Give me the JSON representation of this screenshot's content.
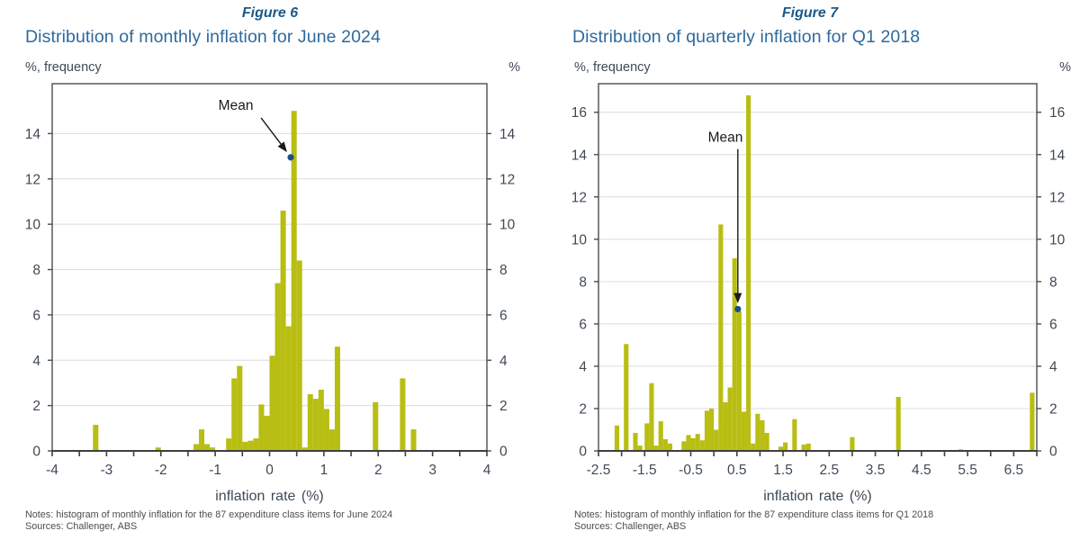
{
  "page": {
    "background": "#ffffff"
  },
  "colors": {
    "caption_blue": "#1b5a8a",
    "title_blue": "#2e6a9e",
    "axis_text": "#3f4a56",
    "bar": "#b8be12",
    "mean_dot": "#1d4e89",
    "grid": "#dcdcdc",
    "frame": "#4d4d4d",
    "axis_line": "#3f3f3f",
    "notes_gray": "#4d4d4d"
  },
  "chart_data": [
    {
      "type": "bar",
      "figure_label": "Figure 6",
      "title": "Distribution of monthly inflation for June 2024",
      "ylabel_left": "%, frequency",
      "ylabel_right": "%",
      "xlabel": "inflation rate (%)",
      "notes": "Notes: histogram of monthly inflation for the 87 expenditure class items for June 2024",
      "sources": "Sources: Challenger, ABS",
      "grid": true,
      "legend": "none",
      "xlim": [
        -4,
        4
      ],
      "ylim": [
        0,
        16.2
      ],
      "x_major_ticks": [
        -4,
        -3,
        -2,
        -1,
        0,
        1,
        2,
        3,
        4
      ],
      "x_minor_step": 0.5,
      "y_ticks": [
        0,
        2,
        4,
        6,
        8,
        10,
        12,
        14
      ],
      "bin_width": 0.1,
      "bars": [
        [
          -3.2,
          1.15
        ],
        [
          -2.05,
          0.15
        ],
        [
          -1.35,
          0.3
        ],
        [
          -1.25,
          0.95
        ],
        [
          -1.15,
          0.3
        ],
        [
          -1.05,
          0.15
        ],
        [
          -0.75,
          0.55
        ],
        [
          -0.65,
          3.2
        ],
        [
          -0.55,
          3.75
        ],
        [
          -0.45,
          0.4
        ],
        [
          -0.35,
          0.45
        ],
        [
          -0.25,
          0.55
        ],
        [
          -0.15,
          2.05
        ],
        [
          -0.05,
          1.55
        ],
        [
          0.05,
          4.2
        ],
        [
          0.15,
          7.4
        ],
        [
          0.25,
          10.6
        ],
        [
          0.35,
          5.5
        ],
        [
          0.45,
          15.0
        ],
        [
          0.55,
          8.4
        ],
        [
          0.65,
          0.15
        ],
        [
          0.75,
          2.5
        ],
        [
          0.85,
          2.3
        ],
        [
          0.95,
          2.7
        ],
        [
          1.05,
          1.85
        ],
        [
          1.15,
          0.95
        ],
        [
          1.25,
          4.6
        ],
        [
          1.95,
          2.15
        ],
        [
          2.45,
          3.2
        ],
        [
          2.65,
          0.95
        ]
      ],
      "mean_annotation": {
        "label": "Mean",
        "x": 0.39,
        "y": 12.95,
        "label_x": -0.62,
        "label_y": 15.05,
        "arrow": "diagonal"
      }
    },
    {
      "type": "bar",
      "figure_label": "Figure 7",
      "title": "Distribution of quarterly inflation for Q1 2018",
      "ylabel_left": "%, frequency",
      "ylabel_right": "%",
      "xlabel": "inflation rate (%)",
      "notes": "Notes: histogram of monthly inflation for the 87 expenditure class items for Q1 2018",
      "sources": "Sources: Challenger, ABS",
      "grid": true,
      "legend": "none",
      "xlim": [
        -2.5,
        7.0
      ],
      "ylim": [
        0,
        17.35
      ],
      "x_major_ticks": [
        -2.5,
        -1.5,
        -0.5,
        0.5,
        1.5,
        2.5,
        3.5,
        4.5,
        5.5,
        6.5
      ],
      "x_minor_step": 0.5,
      "y_ticks": [
        0,
        2,
        4,
        6,
        8,
        10,
        12,
        14,
        16
      ],
      "bin_width": 0.1,
      "bars": [
        [
          -2.1,
          1.2
        ],
        [
          -1.9,
          5.05
        ],
        [
          -1.7,
          0.85
        ],
        [
          -1.6,
          0.25
        ],
        [
          -1.45,
          1.3
        ],
        [
          -1.35,
          3.2
        ],
        [
          -1.25,
          0.25
        ],
        [
          -1.15,
          1.4
        ],
        [
          -1.05,
          0.55
        ],
        [
          -0.95,
          0.35
        ],
        [
          -0.65,
          0.45
        ],
        [
          -0.55,
          0.75
        ],
        [
          -0.45,
          0.6
        ],
        [
          -0.35,
          0.8
        ],
        [
          -0.25,
          0.5
        ],
        [
          -0.15,
          1.9
        ],
        [
          -0.05,
          2.0
        ],
        [
          0.05,
          1.0
        ],
        [
          0.15,
          10.7
        ],
        [
          0.25,
          2.3
        ],
        [
          0.35,
          3.0
        ],
        [
          0.45,
          9.1
        ],
        [
          0.55,
          6.6
        ],
        [
          0.65,
          1.85
        ],
        [
          0.75,
          16.8
        ],
        [
          0.85,
          0.35
        ],
        [
          0.95,
          1.75
        ],
        [
          1.05,
          1.45
        ],
        [
          1.15,
          0.85
        ],
        [
          1.45,
          0.2
        ],
        [
          1.55,
          0.4
        ],
        [
          1.75,
          1.5
        ],
        [
          1.95,
          0.3
        ],
        [
          2.05,
          0.35
        ],
        [
          3.0,
          0.65
        ],
        [
          4.0,
          2.55
        ],
        [
          5.35,
          0.07
        ],
        [
          6.9,
          2.75
        ]
      ],
      "mean_annotation": {
        "label": "Mean",
        "x": 0.52,
        "y": 6.7,
        "label_x": 0.25,
        "label_y": 14.6,
        "arrow": "vertical"
      }
    }
  ]
}
